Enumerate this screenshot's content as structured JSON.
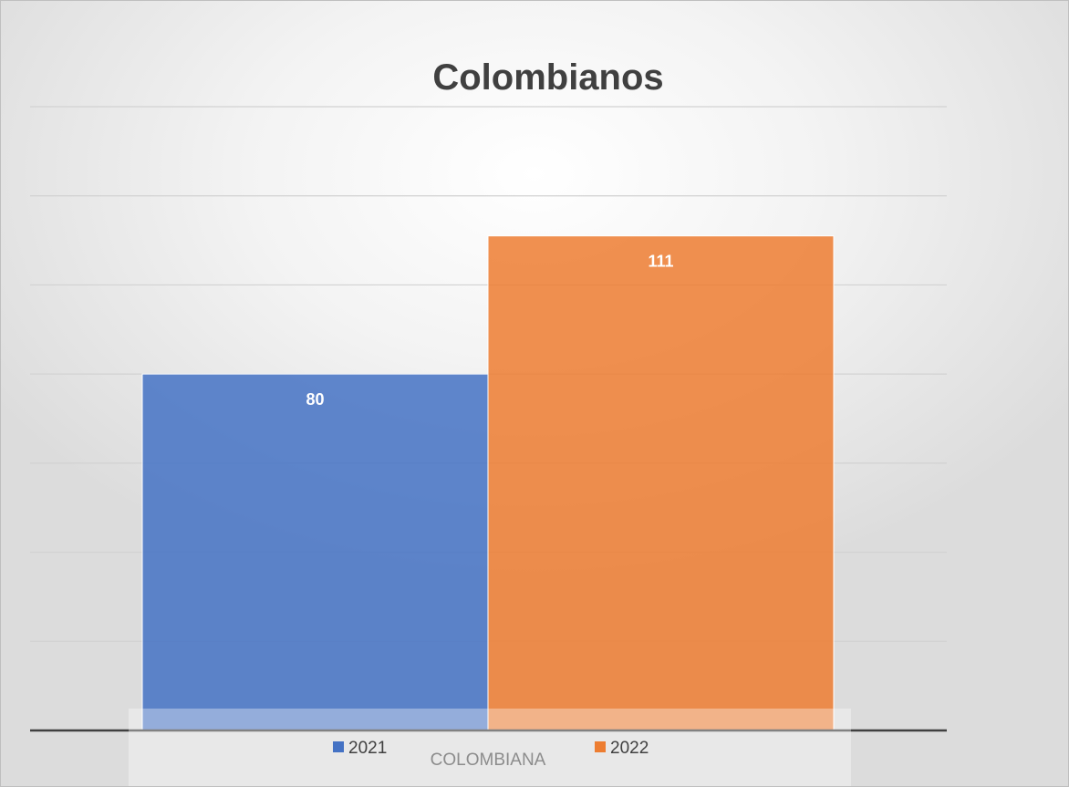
{
  "chart_data": {
    "type": "bar",
    "title": "Colombianos",
    "categories": [
      "COLOMBIANA"
    ],
    "series": [
      {
        "name": "2021",
        "values": [
          80
        ],
        "color": "#4472C4"
      },
      {
        "name": "2022",
        "values": [
          111
        ],
        "color": "#ED7D31"
      }
    ],
    "ylim": [
      0,
      140
    ],
    "grid": true,
    "legend": "bottom",
    "show_data_labels": true,
    "show_y_tick_labels": false
  }
}
